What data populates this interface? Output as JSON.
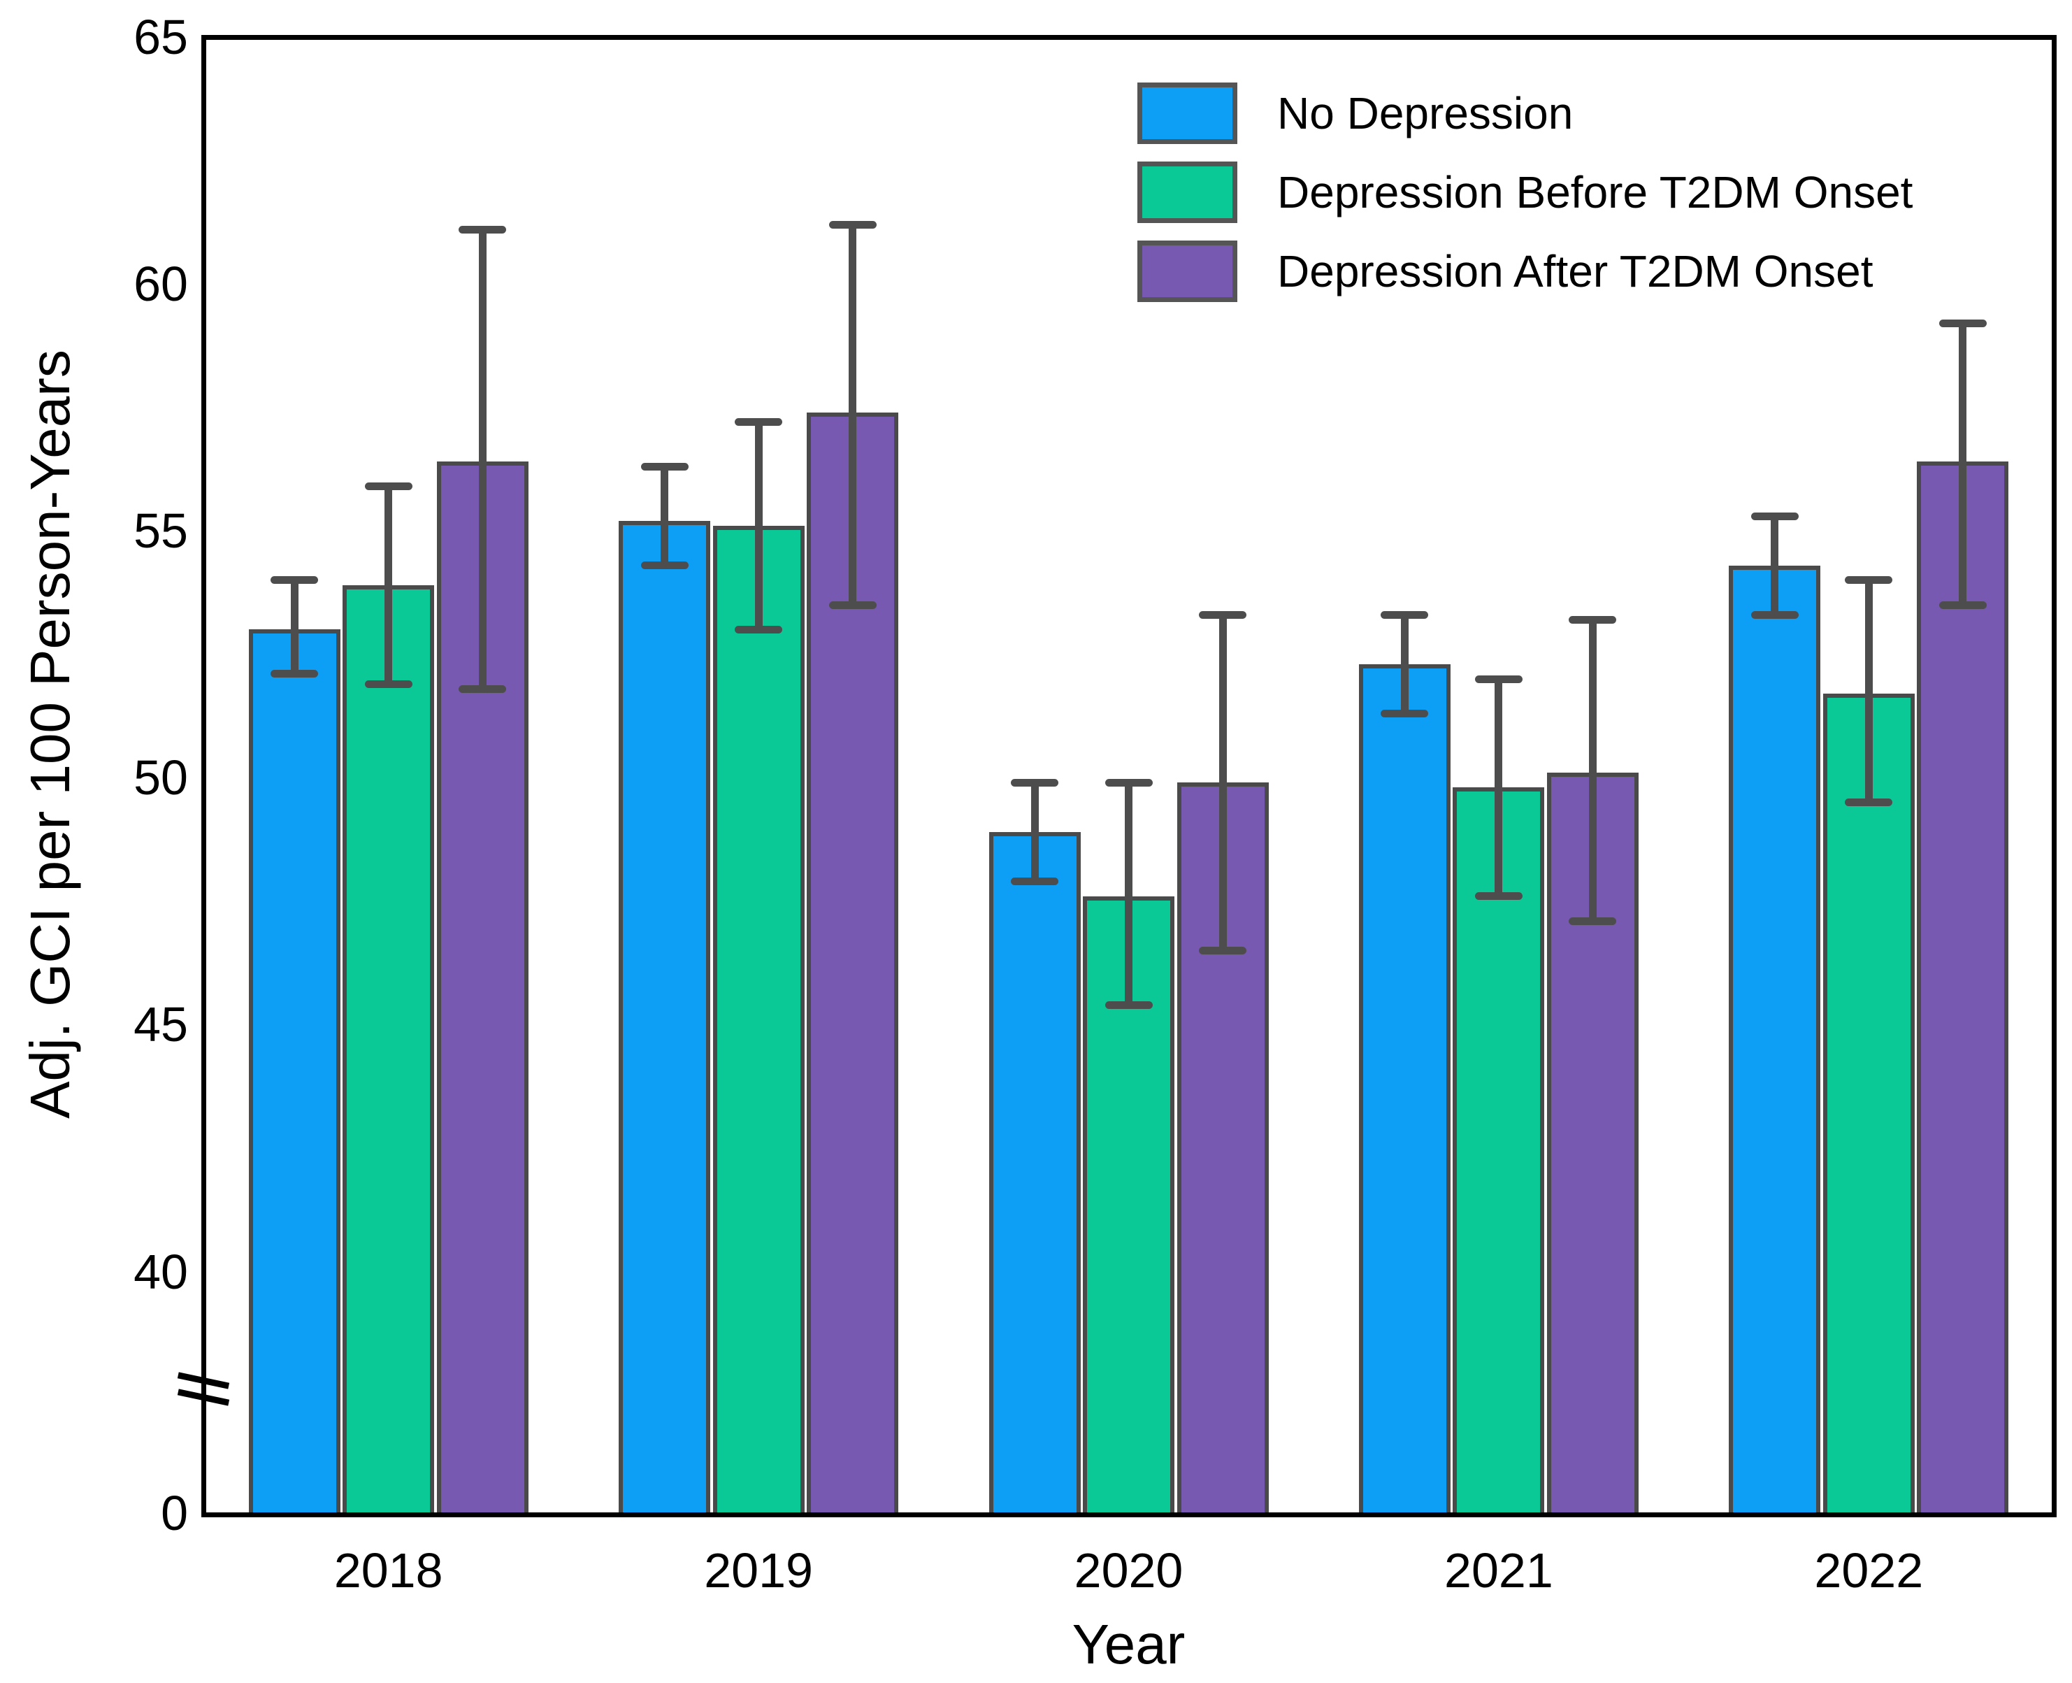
{
  "chart_data": {
    "type": "bar",
    "title": "",
    "xlabel": "Year",
    "ylabel": "Adj. GCI per 100 Person-Years",
    "categories": [
      "2018",
      "2019",
      "2020",
      "2021",
      "2022"
    ],
    "series": [
      {
        "name": "No Depression",
        "color": "#0C9FF5",
        "values": [
          53.0,
          55.2,
          48.9,
          52.3,
          54.3
        ],
        "err_low": [
          52.1,
          54.3,
          47.9,
          51.3,
          53.3
        ],
        "err_high": [
          54.0,
          56.3,
          49.9,
          53.3,
          55.3
        ]
      },
      {
        "name": "Depression Before T2DM Onset",
        "color": "#0AC997",
        "values": [
          53.9,
          55.1,
          47.6,
          49.8,
          51.7
        ],
        "err_low": [
          51.9,
          53.0,
          45.4,
          47.6,
          49.5
        ],
        "err_high": [
          55.9,
          57.2,
          49.9,
          52.0,
          54.0
        ]
      },
      {
        "name": "Depression After T2DM Onset",
        "color": "#7859B1",
        "values": [
          56.4,
          57.4,
          49.9,
          50.1,
          56.4
        ],
        "err_low": [
          51.8,
          53.5,
          46.5,
          47.1,
          53.5
        ],
        "err_high": [
          61.1,
          61.2,
          53.3,
          53.2,
          59.2
        ]
      }
    ],
    "y_axis": {
      "tick_labels": [
        "65",
        "60",
        "55",
        "50",
        "45",
        "40"
      ],
      "tick_values": [
        65,
        60,
        55,
        50,
        45,
        40
      ],
      "zero_label": "0",
      "axis_break": true,
      "linear_range": [
        40,
        65
      ]
    },
    "x_axis": {
      "label": "Year"
    },
    "legend_position": "top-right",
    "grid": false,
    "colors": {
      "bar_edge": "#4A4A4A",
      "error_bar": "#4D4D4D",
      "frame": "#000000",
      "legend_swatch_edge": "#555555"
    }
  }
}
